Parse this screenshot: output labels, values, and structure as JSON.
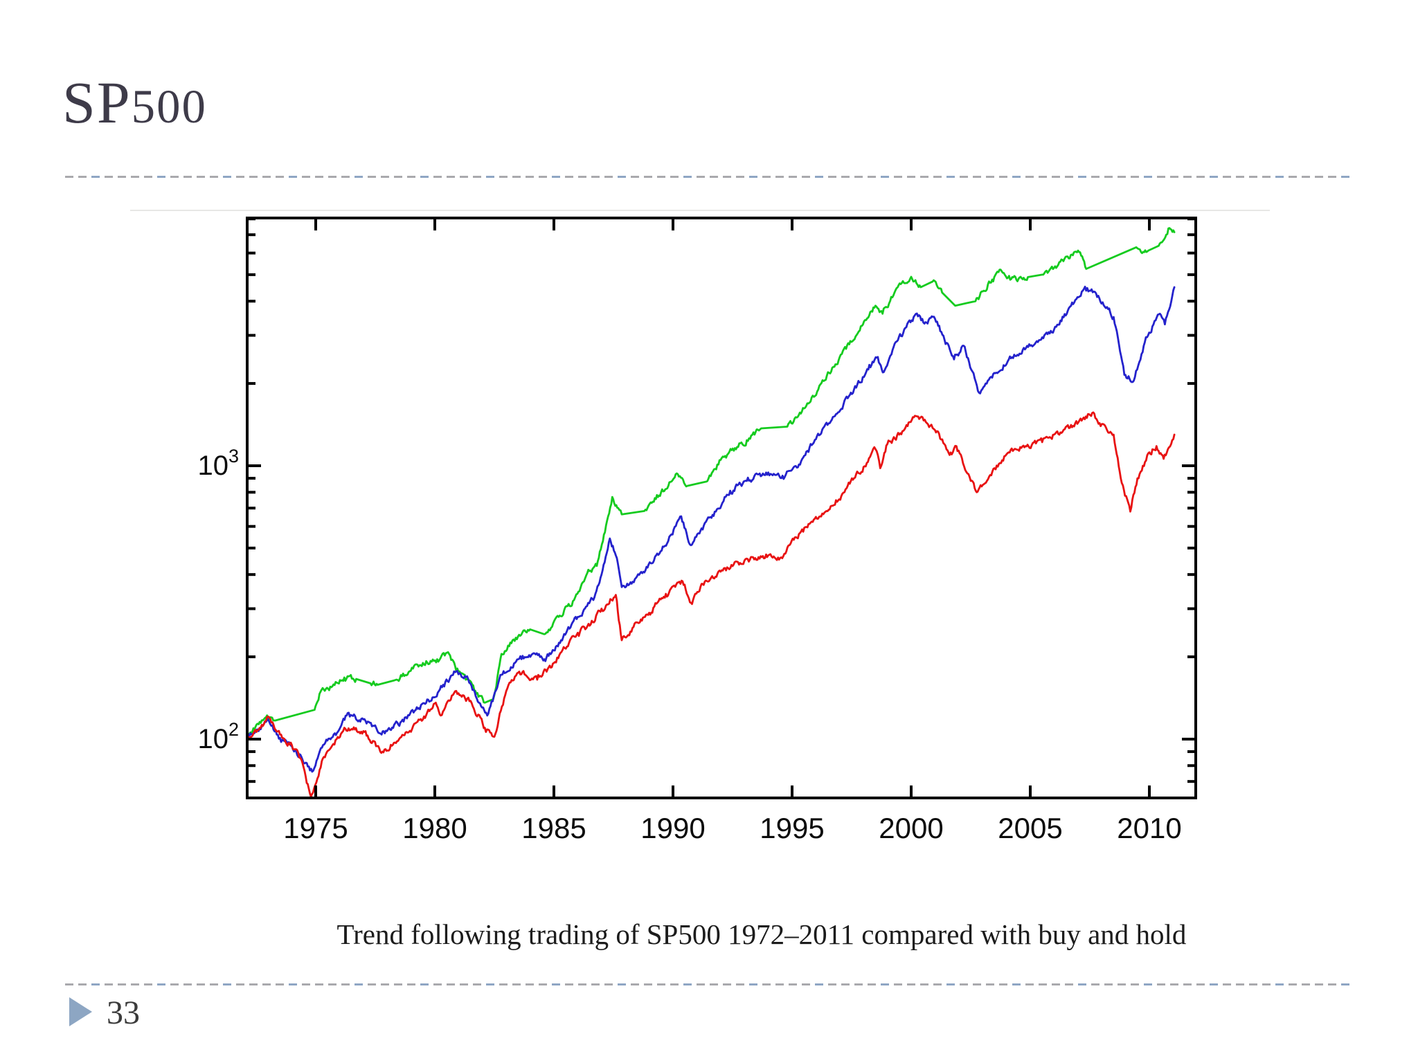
{
  "slide": {
    "title_prefix": "SP",
    "title_digits": "500",
    "page_number": "33"
  },
  "caption": "Trend following trading of SP500 1972–2011 compared with buy and hold",
  "chart_data": {
    "type": "line",
    "title": "",
    "xlabel": "",
    "ylabel": "",
    "grid": false,
    "legend": "none",
    "x_axis": {
      "ticks": [
        1975,
        1980,
        1985,
        1990,
        1995,
        2000,
        2005,
        2010
      ],
      "range": [
        1972.1,
        2012
      ]
    },
    "y_axis": {
      "scale": "log",
      "major_ticks": [
        {
          "value": 100,
          "label": "10^2"
        },
        {
          "value": 1000,
          "label": "10^3"
        }
      ],
      "minor_ticks": [
        70,
        80,
        90,
        200,
        300,
        400,
        500,
        600,
        700,
        800,
        900,
        2000,
        3000,
        4000,
        5000,
        6000,
        7000,
        8000
      ],
      "range": [
        61,
        8060
      ]
    },
    "series": [
      {
        "name": "green-line-trend-following",
        "color": "#15cb1f",
        "points": [
          [
            1972.12,
            104
          ],
          [
            1973.0,
            120
          ],
          [
            1973.3,
            117,
            1
          ],
          [
            1974.95,
            128
          ],
          [
            1975.2,
            149
          ],
          [
            1975.7,
            156
          ],
          [
            1976.2,
            168
          ],
          [
            1976.7,
            166,
            1
          ],
          [
            1977.3,
            160
          ],
          [
            1977.6,
            158,
            1
          ],
          [
            1978.3,
            164
          ],
          [
            1978.9,
            176
          ],
          [
            1979.5,
            190
          ],
          [
            1980.1,
            196
          ],
          [
            1980.6,
            205
          ],
          [
            1980.9,
            177
          ],
          [
            1981.3,
            165
          ],
          [
            1981.7,
            150
          ],
          [
            1982.1,
            136,
            1
          ],
          [
            1982.45,
            140
          ],
          [
            1982.8,
            205
          ],
          [
            1983.4,
            235
          ],
          [
            1984.0,
            252,
            1
          ],
          [
            1984.6,
            242
          ],
          [
            1985.2,
            280
          ],
          [
            1985.8,
            320
          ],
          [
            1986.4,
            405
          ],
          [
            1986.8,
            430
          ],
          [
            1987.1,
            560
          ],
          [
            1987.45,
            769
          ],
          [
            1987.7,
            700
          ],
          [
            1987.85,
            664,
            1
          ],
          [
            1988.8,
            683
          ],
          [
            1989.5,
            800
          ],
          [
            1990.2,
            932
          ],
          [
            1990.6,
            844,
            1
          ],
          [
            1991.4,
            875
          ],
          [
            1992.0,
            1050
          ],
          [
            1992.6,
            1160
          ],
          [
            1993.1,
            1240
          ],
          [
            1993.7,
            1370,
            1
          ],
          [
            1994.8,
            1390
          ],
          [
            1995.5,
            1620
          ],
          [
            1996.1,
            1900
          ],
          [
            1997.0,
            2500
          ],
          [
            1997.8,
            3100
          ],
          [
            1998.5,
            3850
          ],
          [
            1998.8,
            3600
          ],
          [
            1999.3,
            4300
          ],
          [
            2000.0,
            4910
          ],
          [
            2000.4,
            4500,
            1
          ],
          [
            2000.9,
            4720
          ],
          [
            2001.3,
            4300,
            1
          ],
          [
            2001.85,
            3850,
            1
          ],
          [
            2002.7,
            4000
          ],
          [
            2003.4,
            4800
          ],
          [
            2003.8,
            5150
          ],
          [
            2004.2,
            4820
          ],
          [
            2004.9,
            4900,
            1
          ],
          [
            2005.5,
            5000
          ],
          [
            2006.0,
            5300
          ],
          [
            2006.7,
            5900
          ],
          [
            2007.05,
            6050
          ],
          [
            2007.35,
            5250,
            1
          ],
          [
            2009.45,
            6300
          ],
          [
            2009.65,
            6050
          ],
          [
            2010.0,
            6150,
            1
          ],
          [
            2010.35,
            6350
          ],
          [
            2010.8,
            7380
          ],
          [
            2011.05,
            7150
          ]
        ]
      },
      {
        "name": "blue-line-trend-following",
        "color": "#2422cc",
        "points": [
          [
            1972.12,
            103
          ],
          [
            1972.6,
            107
          ],
          [
            1973.0,
            118
          ],
          [
            1973.5,
            101
          ],
          [
            1974.0,
            94
          ],
          [
            1974.4,
            86
          ],
          [
            1974.85,
            76
          ],
          [
            1975.4,
            97
          ],
          [
            1975.8,
            105
          ],
          [
            1976.3,
            122
          ],
          [
            1977.0,
            118
          ],
          [
            1977.9,
            105
          ],
          [
            1978.6,
            116
          ],
          [
            1979.2,
            128
          ],
          [
            1979.9,
            142
          ],
          [
            1980.35,
            158
          ],
          [
            1980.9,
            177
          ],
          [
            1981.4,
            166
          ],
          [
            1981.9,
            135
          ],
          [
            1982.2,
            122
          ],
          [
            1982.8,
            172
          ],
          [
            1983.5,
            196
          ],
          [
            1984.1,
            205
          ],
          [
            1984.6,
            196
          ],
          [
            1985.3,
            230
          ],
          [
            1986.0,
            280
          ],
          [
            1986.7,
            330
          ],
          [
            1987.0,
            400
          ],
          [
            1987.35,
            542
          ],
          [
            1987.6,
            470
          ],
          [
            1987.85,
            360
          ],
          [
            1988.4,
            385
          ],
          [
            1989.2,
            450
          ],
          [
            1989.8,
            530
          ],
          [
            1990.3,
            652
          ],
          [
            1990.75,
            512
          ],
          [
            1991.2,
            590
          ],
          [
            1991.8,
            680
          ],
          [
            1992.4,
            810
          ],
          [
            1993.1,
            880
          ],
          [
            1994.0,
            945
          ],
          [
            1994.6,
            920
          ],
          [
            1995.2,
            985
          ],
          [
            1996.0,
            1250
          ],
          [
            1996.8,
            1520
          ],
          [
            1997.6,
            1900
          ],
          [
            1998.2,
            2250
          ],
          [
            1998.6,
            2500
          ],
          [
            1998.85,
            2200
          ],
          [
            1999.4,
            2850
          ],
          [
            2000.15,
            3550
          ],
          [
            2000.6,
            3350
          ],
          [
            2001.0,
            3450
          ],
          [
            2001.8,
            2450
          ],
          [
            2002.2,
            2750
          ],
          [
            2002.85,
            1850
          ],
          [
            2003.4,
            2100
          ],
          [
            2004.1,
            2450
          ],
          [
            2005.0,
            2750
          ],
          [
            2006.0,
            3150
          ],
          [
            2006.8,
            3900
          ],
          [
            2007.3,
            4520
          ],
          [
            2007.9,
            4100
          ],
          [
            2008.5,
            3500
          ],
          [
            2008.95,
            2150
          ],
          [
            2009.35,
            2050
          ],
          [
            2009.9,
            2950
          ],
          [
            2010.4,
            3580
          ],
          [
            2010.65,
            3290
          ],
          [
            2011.05,
            4500
          ]
        ]
      },
      {
        "name": "red-line-buy-and-hold",
        "color": "#e81212",
        "points": [
          [
            1972.12,
            103
          ],
          [
            1972.6,
            108
          ],
          [
            1973.0,
            121
          ],
          [
            1973.5,
            104
          ],
          [
            1974.0,
            95
          ],
          [
            1974.4,
            84
          ],
          [
            1974.8,
            61
          ],
          [
            1975.3,
            85
          ],
          [
            1975.6,
            92
          ],
          [
            1976.2,
            110
          ],
          [
            1977.0,
            107
          ],
          [
            1977.8,
            90
          ],
          [
            1978.5,
            100
          ],
          [
            1979.5,
            118
          ],
          [
            1980.0,
            135
          ],
          [
            1980.25,
            122
          ],
          [
            1980.9,
            150
          ],
          [
            1981.5,
            138
          ],
          [
            1982.1,
            110
          ],
          [
            1982.5,
            102
          ],
          [
            1983.0,
            150
          ],
          [
            1983.5,
            175
          ],
          [
            1984.3,
            165
          ],
          [
            1985.0,
            190
          ],
          [
            1986.0,
            245
          ],
          [
            1986.5,
            260
          ],
          [
            1987.0,
            300
          ],
          [
            1987.6,
            337
          ],
          [
            1987.85,
            230
          ],
          [
            1988.3,
            255
          ],
          [
            1989.0,
            290
          ],
          [
            1989.7,
            340
          ],
          [
            1990.4,
            378
          ],
          [
            1990.8,
            312
          ],
          [
            1991.2,
            370
          ],
          [
            1992.0,
            410
          ],
          [
            1993.0,
            450
          ],
          [
            1994.0,
            470
          ],
          [
            1994.5,
            460
          ],
          [
            1995.2,
            545
          ],
          [
            1996.0,
            650
          ],
          [
            1996.8,
            720
          ],
          [
            1997.6,
            900
          ],
          [
            1998.0,
            990
          ],
          [
            1998.5,
            1150
          ],
          [
            1998.7,
            980
          ],
          [
            1999.0,
            1200
          ],
          [
            1999.5,
            1300
          ],
          [
            2000.2,
            1520
          ],
          [
            2000.8,
            1400
          ],
          [
            2001.0,
            1350
          ],
          [
            2001.7,
            1100
          ],
          [
            2001.9,
            1180
          ],
          [
            2002.5,
            880
          ],
          [
            2002.75,
            800
          ],
          [
            2003.0,
            850
          ],
          [
            2003.5,
            980
          ],
          [
            2004.0,
            1100
          ],
          [
            2004.8,
            1180
          ],
          [
            2005.5,
            1220
          ],
          [
            2006.0,
            1300
          ],
          [
            2006.8,
            1400
          ],
          [
            2007.6,
            1560
          ],
          [
            2008.0,
            1420
          ],
          [
            2008.5,
            1300
          ],
          [
            2008.8,
            900
          ],
          [
            2009.2,
            680
          ],
          [
            2009.5,
            900
          ],
          [
            2010.0,
            1120
          ],
          [
            2010.3,
            1180
          ],
          [
            2010.6,
            1060
          ],
          [
            2011.05,
            1300
          ]
        ]
      }
    ]
  }
}
